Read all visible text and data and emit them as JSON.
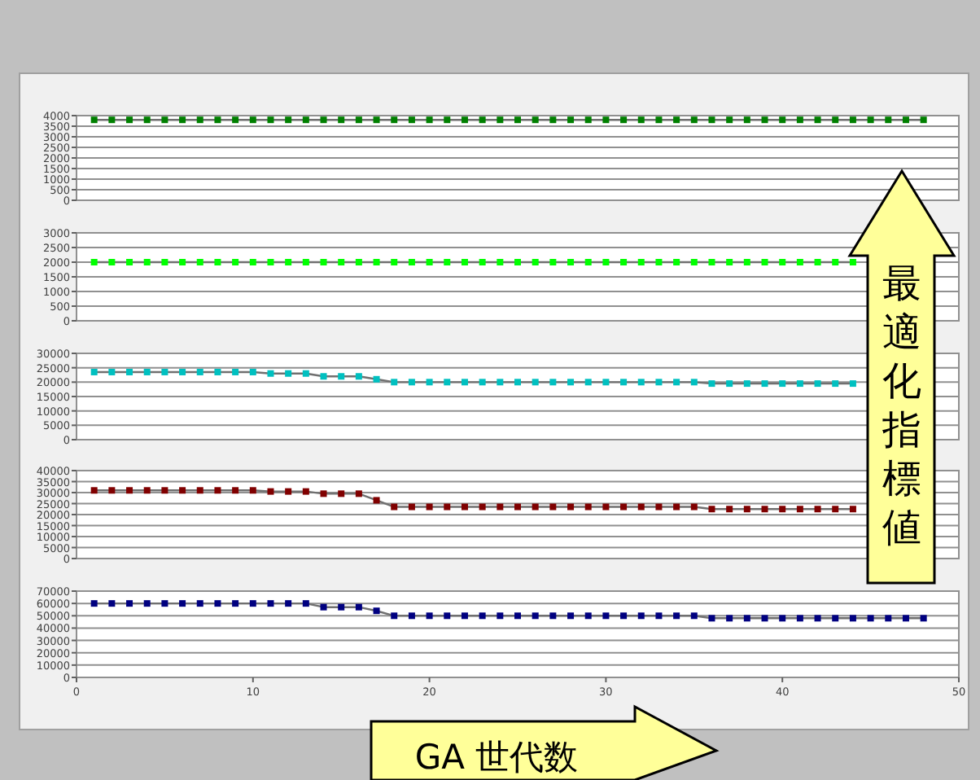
{
  "chart_data": [
    {
      "type": "line",
      "x": [
        1,
        2,
        3,
        4,
        5,
        6,
        7,
        8,
        9,
        10,
        11,
        12,
        13,
        14,
        15,
        16,
        17,
        18,
        19,
        20,
        21,
        22,
        23,
        24,
        25,
        26,
        27,
        28,
        29,
        30,
        31,
        32,
        33,
        34,
        35,
        36,
        37,
        38,
        39,
        40,
        41,
        42,
        43,
        44,
        45,
        46,
        47,
        48
      ],
      "xlim": [
        0,
        50
      ],
      "ylim": [
        0,
        4000
      ],
      "yticks": [
        0,
        500,
        1000,
        1500,
        2000,
        2500,
        3000,
        3500,
        4000
      ],
      "grid": "y",
      "marker": "square",
      "tick_labels": "y",
      "annotations": [
        "最適化指標値"
      ],
      "series": [
        {
          "color": "#008000",
          "values": [
            3800,
            3800,
            3800,
            3800,
            3800,
            3800,
            3800,
            3800,
            3800,
            3800,
            3800,
            3800,
            3800,
            3800,
            3800,
            3800,
            3800,
            3800,
            3800,
            3800,
            3800,
            3800,
            3800,
            3800,
            3800,
            3800,
            3800,
            3800,
            3800,
            3800,
            3800,
            3800,
            3800,
            3800,
            3800,
            3800,
            3800,
            3800,
            3800,
            3800,
            3800,
            3800,
            3800,
            3800,
            3800,
            3800,
            3800,
            3800
          ]
        }
      ]
    },
    {
      "type": "line",
      "x": [
        1,
        2,
        3,
        4,
        5,
        6,
        7,
        8,
        9,
        10,
        11,
        12,
        13,
        14,
        15,
        16,
        17,
        18,
        19,
        20,
        21,
        22,
        23,
        24,
        25,
        26,
        27,
        28,
        29,
        30,
        31,
        32,
        33,
        34,
        35,
        36,
        37,
        38,
        39,
        40,
        41,
        42,
        43,
        44
      ],
      "xlim": [
        0,
        50
      ],
      "ylim": [
        0,
        3000
      ],
      "yticks": [
        0,
        500,
        1000,
        1500,
        2000,
        2500,
        3000
      ],
      "grid": "y",
      "marker": "square",
      "tick_labels": "y",
      "series": [
        {
          "color": "#00ff00",
          "values": [
            2000,
            2000,
            2000,
            2000,
            2000,
            2000,
            2000,
            2000,
            2000,
            2000,
            2000,
            2000,
            2000,
            2000,
            2000,
            2000,
            2000,
            2000,
            2000,
            2000,
            2000,
            2000,
            2000,
            2000,
            2000,
            2000,
            2000,
            2000,
            2000,
            2000,
            2000,
            2000,
            2000,
            2000,
            2000,
            2000,
            2000,
            2000,
            2000,
            2000,
            2000,
            2000,
            2000,
            2000
          ]
        }
      ]
    },
    {
      "type": "line",
      "x": [
        1,
        2,
        3,
        4,
        5,
        6,
        7,
        8,
        9,
        10,
        11,
        12,
        13,
        14,
        15,
        16,
        17,
        18,
        19,
        20,
        21,
        22,
        23,
        24,
        25,
        26,
        27,
        28,
        29,
        30,
        31,
        32,
        33,
        34,
        35,
        36,
        37,
        38,
        39,
        40,
        41,
        42,
        43,
        44
      ],
      "xlim": [
        0,
        50
      ],
      "ylim": [
        0,
        30000
      ],
      "yticks": [
        0,
        5000,
        10000,
        15000,
        20000,
        25000,
        30000
      ],
      "grid": "y",
      "marker": "square",
      "tick_labels": "y",
      "series": [
        {
          "color": "#00c0c0",
          "values": [
            23500,
            23500,
            23500,
            23500,
            23500,
            23500,
            23500,
            23500,
            23500,
            23500,
            23000,
            23000,
            23000,
            22000,
            22000,
            22000,
            21000,
            20000,
            20000,
            20000,
            20000,
            20000,
            20000,
            20000,
            20000,
            20000,
            20000,
            20000,
            20000,
            20000,
            20000,
            20000,
            20000,
            20000,
            20000,
            19500,
            19500,
            19500,
            19500,
            19500,
            19500,
            19500,
            19500,
            19500
          ]
        }
      ]
    },
    {
      "type": "line",
      "x": [
        1,
        2,
        3,
        4,
        5,
        6,
        7,
        8,
        9,
        10,
        11,
        12,
        13,
        14,
        15,
        16,
        17,
        18,
        19,
        20,
        21,
        22,
        23,
        24,
        25,
        26,
        27,
        28,
        29,
        30,
        31,
        32,
        33,
        34,
        35,
        36,
        37,
        38,
        39,
        40,
        41,
        42,
        43,
        44
      ],
      "xlim": [
        0,
        50
      ],
      "ylim": [
        0,
        40000
      ],
      "yticks": [
        0,
        5000,
        10000,
        15000,
        20000,
        25000,
        30000,
        35000,
        40000
      ],
      "grid": "y",
      "marker": "square",
      "tick_labels": "y",
      "series": [
        {
          "color": "#800000",
          "values": [
            31000,
            31000,
            31000,
            31000,
            31000,
            31000,
            31000,
            31000,
            31000,
            31000,
            30500,
            30500,
            30500,
            29500,
            29500,
            29500,
            26500,
            23500,
            23500,
            23500,
            23500,
            23500,
            23500,
            23500,
            23500,
            23500,
            23500,
            23500,
            23500,
            23500,
            23500,
            23500,
            23500,
            23500,
            23500,
            22500,
            22500,
            22500,
            22500,
            22500,
            22500,
            22500,
            22500,
            22500
          ]
        }
      ]
    },
    {
      "type": "line",
      "x": [
        1,
        2,
        3,
        4,
        5,
        6,
        7,
        8,
        9,
        10,
        11,
        12,
        13,
        14,
        15,
        16,
        17,
        18,
        19,
        20,
        21,
        22,
        23,
        24,
        25,
        26,
        27,
        28,
        29,
        30,
        31,
        32,
        33,
        34,
        35,
        36,
        37,
        38,
        39,
        40,
        41,
        42,
        43,
        44,
        45,
        46,
        47,
        48
      ],
      "xlim": [
        0,
        50
      ],
      "xticks": [
        0,
        10,
        20,
        30,
        40,
        50
      ],
      "ylim": [
        0,
        70000
      ],
      "yticks": [
        0,
        10000,
        20000,
        30000,
        40000,
        50000,
        60000,
        70000
      ],
      "grid": "y",
      "marker": "square",
      "annotations": [
        "GA 世代数"
      ],
      "series": [
        {
          "color": "#000080",
          "values": [
            60000,
            60000,
            60000,
            60000,
            60000,
            60000,
            60000,
            60000,
            60000,
            60000,
            60000,
            60000,
            60000,
            57000,
            57000,
            57000,
            54000,
            50000,
            50000,
            50000,
            50000,
            50000,
            50000,
            50000,
            50000,
            50000,
            50000,
            50000,
            50000,
            50000,
            50000,
            50000,
            50000,
            50000,
            50000,
            48000,
            48000,
            48000,
            48000,
            48000,
            48000,
            48000,
            48000,
            48000,
            48000,
            48000,
            48000,
            48000
          ]
        }
      ]
    }
  ]
}
